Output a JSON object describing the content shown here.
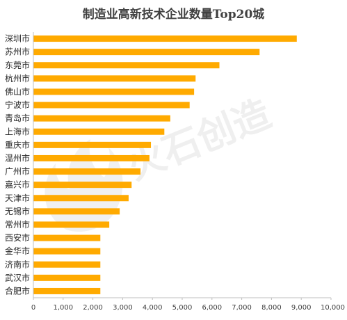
{
  "colors": {
    "bar": "#FFAA00",
    "axis": "#BFBFBF",
    "text": "#262626"
  },
  "chart_data": {
    "type": "bar",
    "orientation": "horizontal",
    "title": "制造业高新技术企业数量Top20城",
    "categories": [
      "深圳市",
      "苏州市",
      "东莞市",
      "杭州市",
      "佛山市",
      "宁波市",
      "青岛市",
      "上海市",
      "重庆市",
      "温州市",
      "广州市",
      "嘉兴市",
      "天津市",
      "无锡市",
      "常州市",
      "西安市",
      "金华市",
      "济南市",
      "武汉市",
      "合肥市"
    ],
    "values": [
      8850,
      7600,
      6250,
      5450,
      5400,
      5250,
      4600,
      4400,
      3950,
      3900,
      3600,
      3300,
      3200,
      2900,
      2550,
      2250,
      2250,
      2250,
      2250,
      2250
    ],
    "xlim": [
      0,
      10000
    ],
    "xticks": [
      0,
      1000,
      2000,
      3000,
      4000,
      5000,
      6000,
      7000,
      8000,
      9000,
      10000
    ],
    "xtick_labels": [
      "0",
      "1,000",
      "2,000",
      "3,000",
      "4,000",
      "5,000",
      "6,000",
      "7,000",
      "8,000",
      "9,000",
      "10,000"
    ],
    "grid": false,
    "legend": "none",
    "watermark": {
      "text": "火石创造",
      "icon": "flame-logo-icon"
    }
  }
}
